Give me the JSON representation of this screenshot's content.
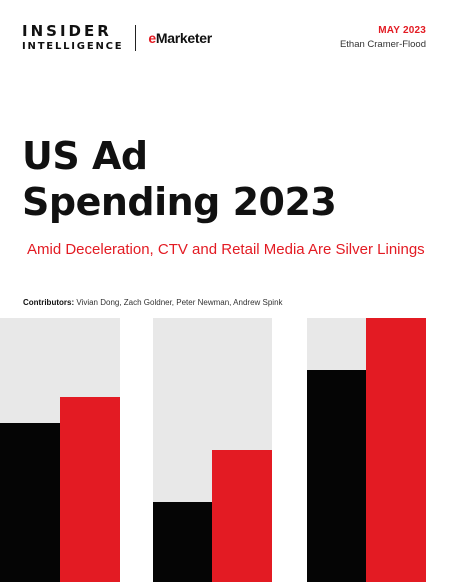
{
  "header": {
    "brand_line1": "INSIDER",
    "brand_line2": "INTELLIGENCE",
    "partner_prefix": "e",
    "partner_rest": "Marketer",
    "date": "MAY 2023",
    "author": "Ethan Cramer-Flood"
  },
  "cover": {
    "title_line1": "US Ad",
    "title_line2": "Spending 2023",
    "subtitle": "Amid Deceleration, CTV and Retail Media Are Silver Linings",
    "contributors_label": "Contributors:",
    "contributors": "Vivian Dong, Zach Goldner, Peter Newman, Andrew Spink"
  },
  "colors": {
    "accent": "#e31b23",
    "dark": "#050505",
    "light_gray": "#e8e8e8"
  }
}
